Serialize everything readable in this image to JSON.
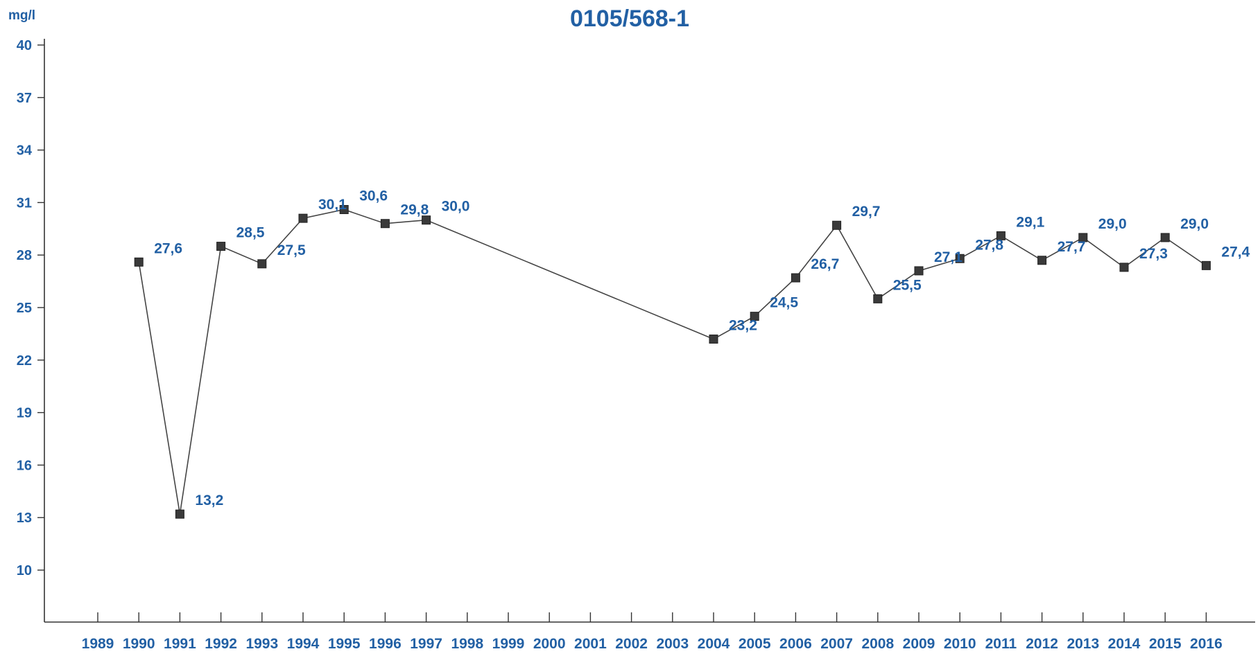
{
  "chart_data": {
    "type": "line",
    "title": "0105/568-1",
    "ylabel": "mg/l",
    "xlabel": "",
    "ylim": [
      7,
      40
    ],
    "yticks": [
      10,
      13,
      16,
      19,
      22,
      25,
      28,
      31,
      34,
      37,
      40
    ],
    "categories": [
      "1989",
      "1990",
      "1991",
      "1992",
      "1993",
      "1994",
      "1995",
      "1996",
      "1997",
      "1998",
      "1999",
      "2000",
      "2001",
      "2002",
      "2003",
      "2004",
      "2005",
      "2006",
      "2007",
      "2008",
      "2009",
      "2010",
      "2011",
      "2012",
      "2013",
      "2014",
      "2015",
      "2016"
    ],
    "grid": false,
    "series": [
      {
        "points": [
          {
            "x": "1990",
            "y": 27.6,
            "label": "27,6"
          },
          {
            "x": "1991",
            "y": 13.2,
            "label": "13,2"
          },
          {
            "x": "1992",
            "y": 28.5,
            "label": "28,5"
          },
          {
            "x": "1993",
            "y": 27.5,
            "label": "27,5"
          },
          {
            "x": "1994",
            "y": 30.1,
            "label": "30,1"
          },
          {
            "x": "1995",
            "y": 30.6,
            "label": "30,6"
          },
          {
            "x": "1996",
            "y": 29.8,
            "label": "29,8"
          },
          {
            "x": "1997",
            "y": 30.0,
            "label": "30,0"
          },
          {
            "x": "2004",
            "y": 23.2,
            "label": "23,2"
          },
          {
            "x": "2005",
            "y": 24.5,
            "label": "24,5"
          },
          {
            "x": "2006",
            "y": 26.7,
            "label": "26,7"
          },
          {
            "x": "2007",
            "y": 29.7,
            "label": "29,7"
          },
          {
            "x": "2008",
            "y": 25.5,
            "label": "25,5"
          },
          {
            "x": "2009",
            "y": 27.1,
            "label": "27,1"
          },
          {
            "x": "2010",
            "y": 27.8,
            "label": "27,8"
          },
          {
            "x": "2011",
            "y": 29.1,
            "label": "29,1"
          },
          {
            "x": "2012",
            "y": 27.7,
            "label": "27,7"
          },
          {
            "x": "2013",
            "y": 29.0,
            "label": "29,0"
          },
          {
            "x": "2014",
            "y": 27.3,
            "label": "27,3"
          },
          {
            "x": "2015",
            "y": 29.0,
            "label": "29,0"
          },
          {
            "x": "2016",
            "y": 27.4,
            "label": "27,4"
          }
        ]
      }
    ]
  }
}
